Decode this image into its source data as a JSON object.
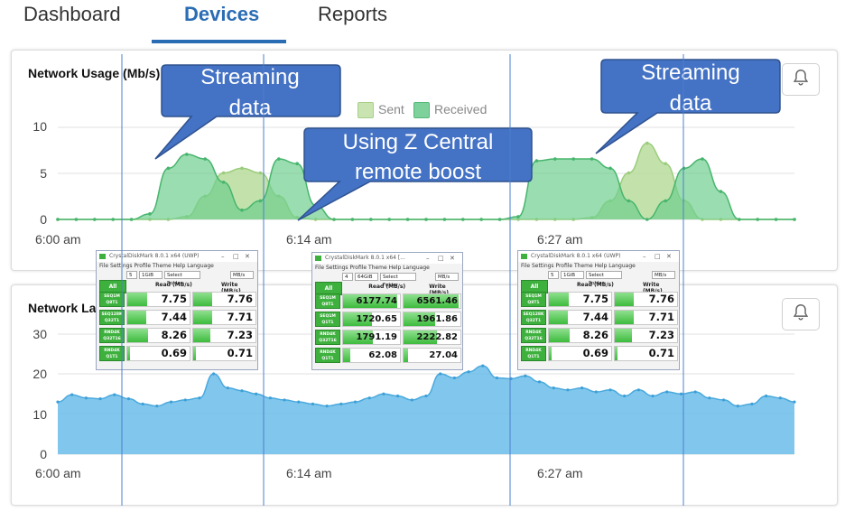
{
  "nav": {
    "tabs": [
      {
        "label": "Dashboard"
      },
      {
        "label": "Devices"
      },
      {
        "label": "Reports"
      }
    ],
    "active": "Devices"
  },
  "usage_panel": {
    "title": "Network Usage (Mb/s)",
    "legend": [
      "Sent",
      "Received"
    ],
    "colors": {
      "sent": "#b9dd9c",
      "received": "#6fcf8f",
      "grid": "#e2e2e2"
    },
    "chart_data": {
      "type": "area",
      "title": "Network Usage (Mb/s)",
      "x_ticks": [
        "6:00 am",
        "6:14 am",
        "6:27 am"
      ],
      "y_ticks": [
        "0",
        "5",
        "10"
      ],
      "ylim": [
        0,
        12.5
      ],
      "x_points": 41,
      "series": [
        {
          "name": "Sent",
          "values": [
            0,
            0,
            0,
            0,
            0,
            0,
            0,
            0.3,
            2.5,
            5,
            5.5,
            5,
            2.5,
            0.2,
            0,
            0,
            0,
            0,
            0,
            0,
            0,
            0,
            0,
            0,
            0,
            0,
            0,
            0,
            0,
            0.2,
            2,
            5,
            8.2,
            6,
            2,
            0,
            0,
            0,
            0,
            0,
            0
          ]
        },
        {
          "name": "Received",
          "values": [
            0,
            0,
            0,
            0,
            0,
            0.6,
            5.5,
            7,
            6.5,
            4,
            1,
            2,
            6.5,
            6,
            1.5,
            0,
            0,
            0,
            0,
            0,
            0,
            0,
            0,
            0,
            0,
            0.3,
            6.3,
            6.5,
            6.5,
            6.5,
            5.5,
            2,
            0,
            2,
            5.5,
            6.5,
            3,
            0,
            0,
            0,
            0
          ]
        }
      ]
    }
  },
  "latency_panel": {
    "title": "Network Latency",
    "color": "#6bbdea",
    "chart_data": {
      "type": "area",
      "x_ticks": [
        "6:00 am",
        "6:14 am",
        "6:27 am"
      ],
      "y_ticks": [
        "0",
        "10",
        "20",
        "30"
      ],
      "ylim": [
        0,
        30
      ],
      "series": [
        {
          "name": "",
          "values": [
            13,
            14.8,
            14,
            13.8,
            14.8,
            13.8,
            12.5,
            12,
            13,
            13.5,
            14,
            20,
            16.5,
            15.8,
            15,
            14,
            13.5,
            13,
            12.5,
            12,
            12.5,
            13,
            14,
            15,
            14.5,
            13.5,
            14.5,
            20,
            19,
            20.5,
            22,
            19,
            18.8,
            19.5,
            18,
            16.5,
            16,
            16.5,
            15.5,
            16,
            14.5,
            16,
            14.5,
            15.5,
            15,
            15.5,
            14,
            13.5,
            12,
            12.5,
            14.5,
            14,
            13
          ]
        }
      ]
    }
  },
  "callouts": [
    {
      "lines": [
        "Streaming",
        "data"
      ]
    },
    {
      "lines": [
        "Using Z Central",
        "remote boost"
      ]
    },
    {
      "lines": [
        "Streaming",
        "data"
      ]
    }
  ],
  "bench_left": {
    "title": "CrystalDiskMark 8.0.1 x64 (UWP)",
    "menu": "File  Settings  Profile  Theme  Help  Language",
    "controls": [
      "5",
      "1GiB",
      "Select Folder",
      "MB/s"
    ],
    "all_label": "All",
    "read_head": "Read (MB/s)",
    "write_head": "Write (MB/s)",
    "rows": [
      {
        "label": [
          "SEQ1M",
          "Q8T1"
        ],
        "read": "7.75",
        "write": "7.76",
        "rfill": 0.32,
        "wfill": 0.3
      },
      {
        "label": [
          "SEQ128K",
          "Q32T1"
        ],
        "read": "7.44",
        "write": "7.71",
        "rfill": 0.3,
        "wfill": 0.3
      },
      {
        "label": [
          "RND4K",
          "Q32T16"
        ],
        "read": "8.26",
        "write": "7.23",
        "rfill": 0.34,
        "wfill": 0.28
      },
      {
        "label": [
          "RND4K",
          "Q1T1"
        ],
        "read": "0.69",
        "write": "0.71",
        "rfill": 0.05,
        "wfill": 0.05
      }
    ]
  },
  "bench_mid": {
    "title": "CrystalDiskMark 8.0.1 x64 [...",
    "menu": "File  Settings  Profile  Theme  Help  Language",
    "controls": [
      "4",
      "64GiB",
      "Select Folder",
      "MB/s"
    ],
    "all_label": "All",
    "read_head": "Read (MB/s)",
    "write_head": "Write (MB/s)",
    "rows": [
      {
        "label": [
          "SEQ1M",
          "Q8T1"
        ],
        "read": "6177.74",
        "write": "6561.46",
        "rfill": 0.95,
        "wfill": 0.97
      },
      {
        "label": [
          "SEQ1M",
          "Q1T1"
        ],
        "read": "1720.65",
        "write": "1961.86",
        "rfill": 0.5,
        "wfill": 0.55
      },
      {
        "label": [
          "RND4K",
          "Q32T16"
        ],
        "read": "1791.19",
        "write": "2222.82",
        "rfill": 0.52,
        "wfill": 0.58
      },
      {
        "label": [
          "RND4K",
          "Q1T1"
        ],
        "read": "62.08",
        "write": "27.04",
        "rfill": 0.12,
        "wfill": 0.08
      }
    ]
  },
  "bench_right": {
    "title": "CrystalDiskMark 8.0.1 x64 (UWP)",
    "menu": "File  Settings  Profile  Theme  Help  Language",
    "controls": [
      "5",
      "1GiB",
      "Select Folder",
      "MB/s"
    ],
    "all_label": "All",
    "read_head": "Read (MB/s)",
    "write_head": "Write (MB/s)",
    "rows": [
      {
        "label": [
          "SEQ1M",
          "Q8T1"
        ],
        "read": "7.75",
        "write": "7.76",
        "rfill": 0.32,
        "wfill": 0.3
      },
      {
        "label": [
          "SEQ128K",
          "Q32T1"
        ],
        "read": "7.44",
        "write": "7.71",
        "rfill": 0.3,
        "wfill": 0.3
      },
      {
        "label": [
          "RND4K",
          "Q32T16"
        ],
        "read": "8.26",
        "write": "7.23",
        "rfill": 0.34,
        "wfill": 0.28
      },
      {
        "label": [
          "RND4K",
          "Q1T1"
        ],
        "read": "0.69",
        "write": "0.71",
        "rfill": 0.05,
        "wfill": 0.05
      }
    ]
  }
}
